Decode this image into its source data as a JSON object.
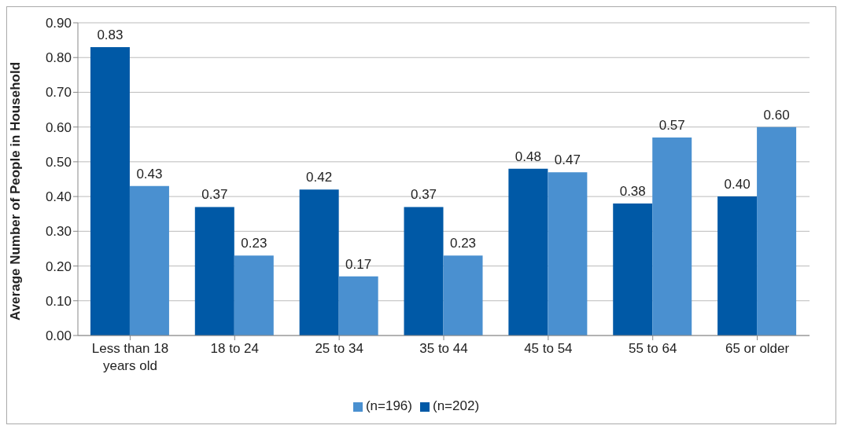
{
  "chart_data": {
    "type": "bar",
    "ylabel": "Average Number of People in Household",
    "categories": [
      "Less than 18 years old",
      "18 to 24",
      "25 to 34",
      "35 to 44",
      "45 to 54",
      "55 to 64",
      "65 or older"
    ],
    "series": [
      {
        "name": "(n=202)",
        "color": "#0059a6",
        "values": [
          0.83,
          0.37,
          0.42,
          0.37,
          0.48,
          0.38,
          0.4
        ],
        "value_labels": [
          "0.83",
          "0.37",
          "0.42",
          "0.37",
          "0.48",
          "0.38",
          "0.40"
        ]
      },
      {
        "name": "(n=196)",
        "color": "#4a90d0",
        "values": [
          0.43,
          0.23,
          0.17,
          0.23,
          0.47,
          0.57,
          0.6
        ],
        "value_labels": [
          "0.43",
          "0.23",
          "0.17",
          "0.23",
          "0.47",
          "0.57",
          "0.60"
        ]
      }
    ],
    "ylim": [
      0,
      0.9
    ],
    "yticks": [
      {
        "value": 0,
        "label": "0.00"
      },
      {
        "value": 0.1,
        "label": "0.10"
      },
      {
        "value": 0.2,
        "label": "0.20"
      },
      {
        "value": 0.3,
        "label": "0.30"
      },
      {
        "value": 0.4,
        "label": "0.40"
      },
      {
        "value": 0.5,
        "label": "0.50"
      },
      {
        "value": 0.6,
        "label": "0.60"
      },
      {
        "value": 0.7,
        "label": "0.70"
      },
      {
        "value": 0.8,
        "label": "0.80"
      },
      {
        "value": 0.9,
        "label": "0.90"
      }
    ],
    "grid": "y",
    "legend": "bottom"
  }
}
